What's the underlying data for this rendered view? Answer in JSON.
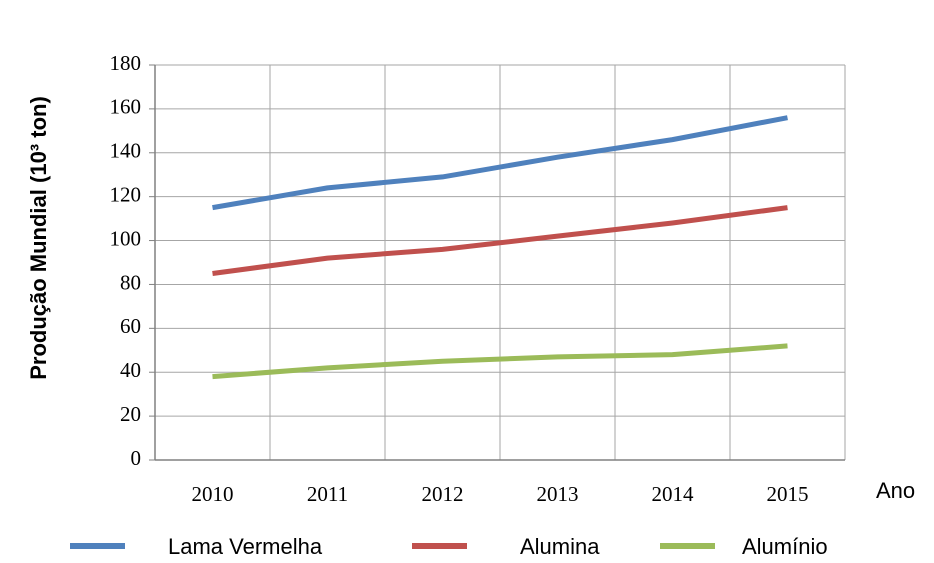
{
  "chart_data": {
    "type": "line",
    "y_label": "Produção Mundial  (10³ ton)",
    "x_label": "Ano",
    "categories": [
      "2010",
      "2011",
      "2012",
      "2013",
      "2014",
      "2015"
    ],
    "series": [
      {
        "name": "Lama Vermelha",
        "color": "#4f81bd",
        "values": [
          115,
          124,
          129,
          138,
          146,
          156
        ]
      },
      {
        "name": "Alumina",
        "color": "#c0504d",
        "values": [
          85,
          92,
          96,
          102,
          108,
          115
        ]
      },
      {
        "name": "Alumínio",
        "color": "#9bbb59",
        "values": [
          38,
          42,
          45,
          47,
          48,
          52
        ]
      }
    ],
    "ylim": [
      0,
      180
    ],
    "yticks": [
      0,
      20,
      40,
      60,
      80,
      100,
      120,
      140,
      160,
      180
    ],
    "grid": true,
    "legend": "bottom"
  }
}
